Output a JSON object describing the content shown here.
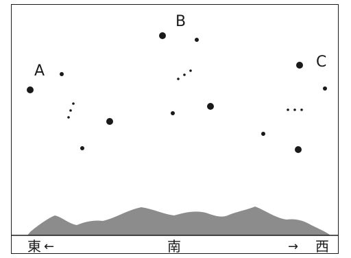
{
  "constellation_labels": {
    "a": "A",
    "b": "B",
    "c": "C"
  },
  "directions": {
    "east": "東",
    "south": "南",
    "west": "西",
    "east_arrow": "←",
    "west_arrow": "→"
  },
  "colors": {
    "stars": "#1a1a1a",
    "mountains": "#8c8c8c",
    "frame": "#1a1a1a"
  }
}
